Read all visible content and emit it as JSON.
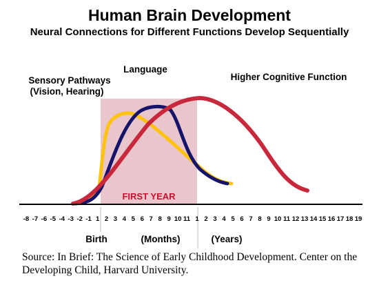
{
  "chart_data": {
    "type": "line",
    "title": "Human Brain Development",
    "subtitle": "Neural Connections for Different Functions Develop Sequentially",
    "x_tick_labels_months": [
      "-8",
      "-7",
      "-6",
      "-5",
      "-4",
      "-3",
      "-2",
      "-1",
      "1",
      "2",
      "3",
      "4",
      "5",
      "6",
      "7",
      "8",
      "9",
      "10",
      "11"
    ],
    "x_tick_labels_years": [
      "1",
      "2",
      "3",
      "4",
      "5",
      "6",
      "7",
      "8",
      "9",
      "10",
      "11",
      "12",
      "13",
      "14",
      "15",
      "16",
      "17",
      "18",
      "19"
    ],
    "x_axis_labels": {
      "birth": "Birth",
      "months": "(Months)",
      "years": "(Years)"
    },
    "highlight": {
      "label": "FIRST YEAR",
      "color": "#e8c6cc"
    },
    "grid": false,
    "legend": "none",
    "series": [
      {
        "name": "Sensory Pathways\n(Vision, Hearing)",
        "label_line1": "Sensory Pathways",
        "label_line2": "(Vision, Hearing)",
        "color": "#ffc20e"
      },
      {
        "name": "Language",
        "label_line1": "Language",
        "color": "#16136b"
      },
      {
        "name": "Higher Cognitive Function",
        "label_line1": "Higher Cognitive Function",
        "color": "#c8283c"
      }
    ]
  },
  "source": "Source: In Brief: The Science of Early Childhood Development. Center on the Developing Child, Harvard University."
}
